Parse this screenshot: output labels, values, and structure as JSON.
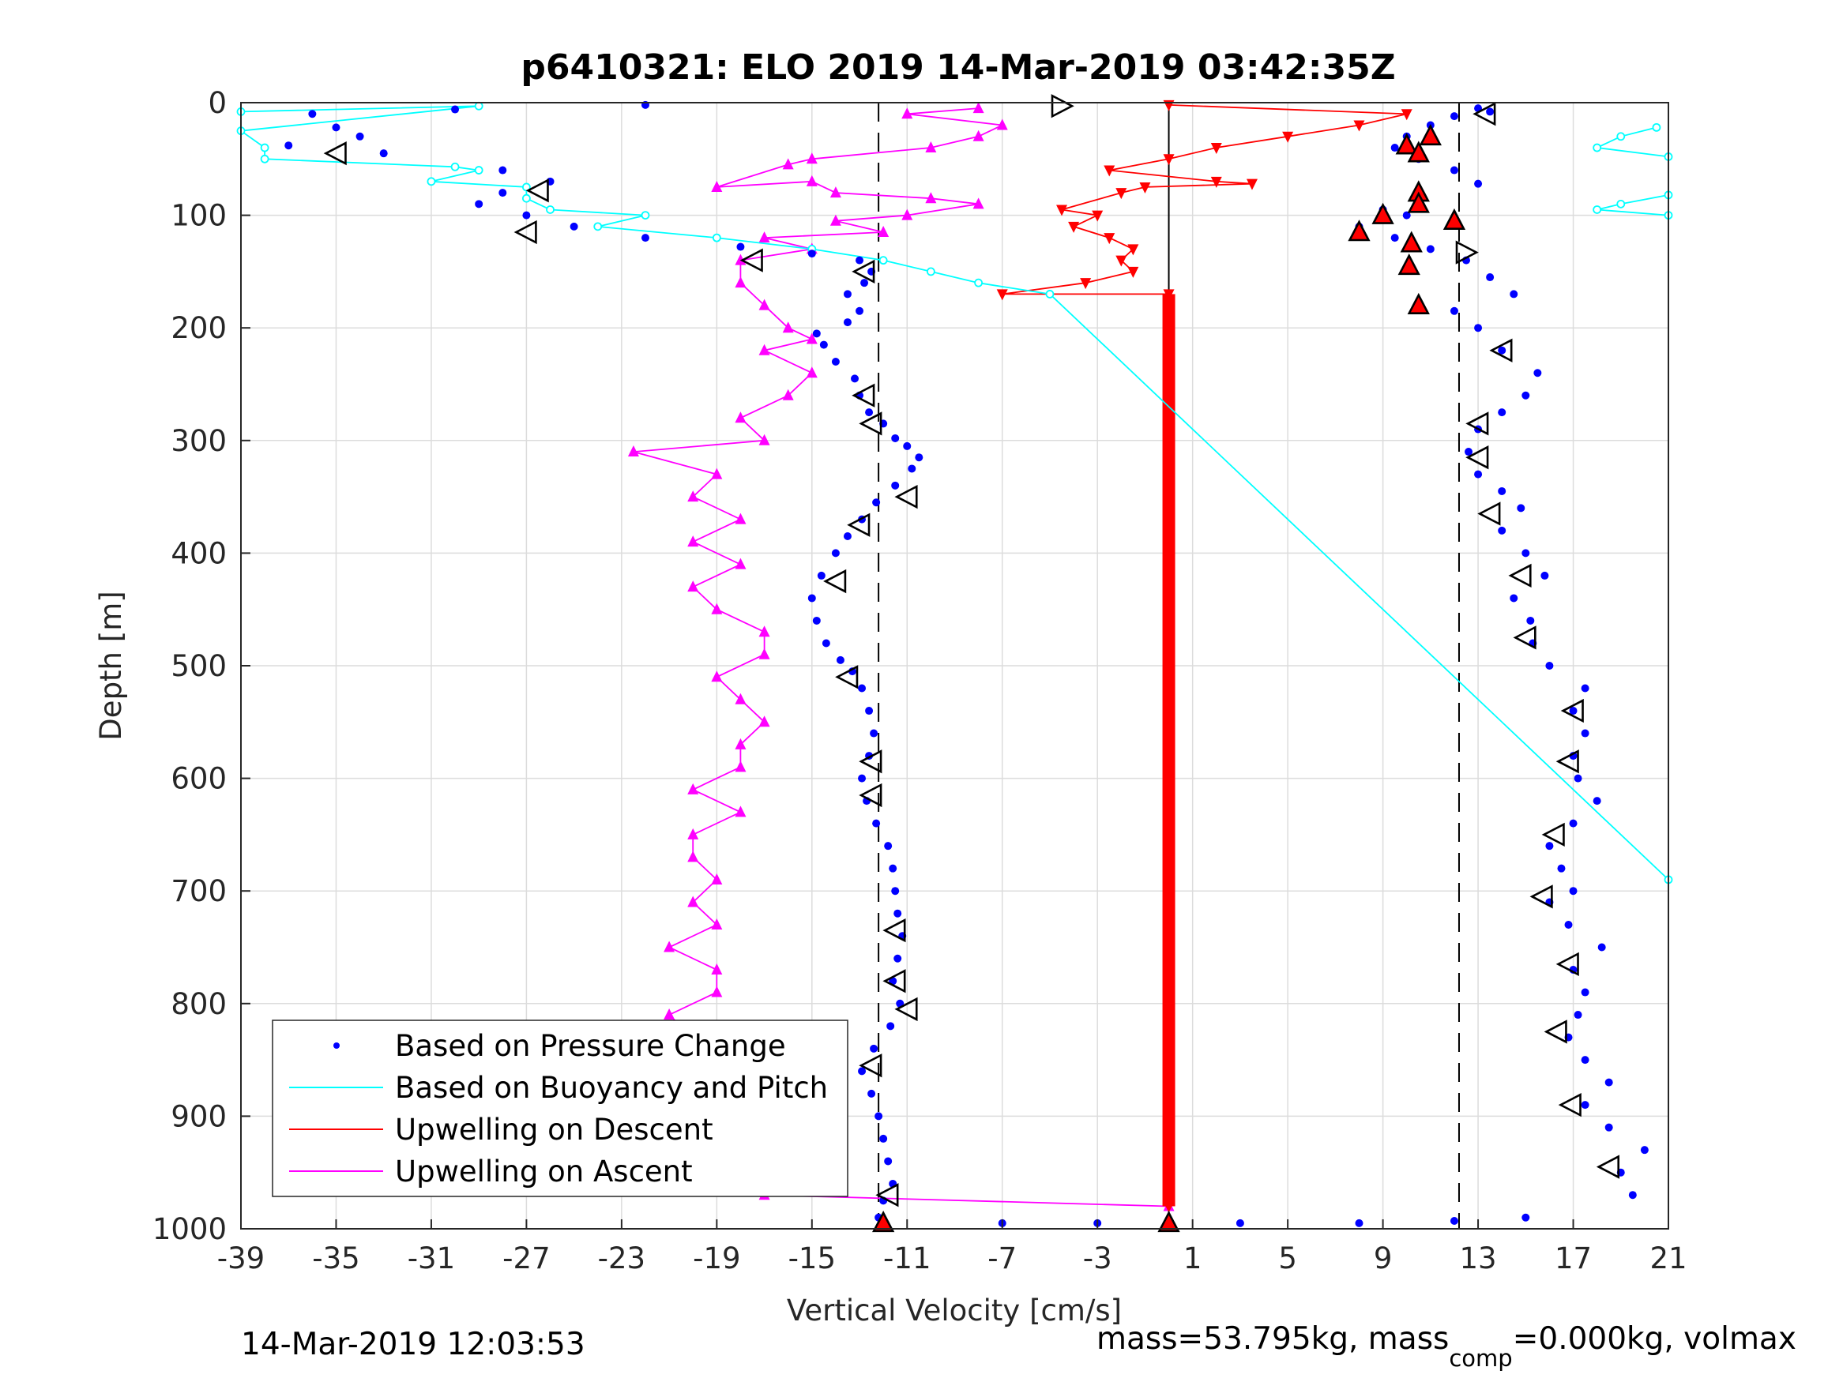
{
  "chart_data": {
    "type": "scatter",
    "title": "p6410321: ELO 2019 14-Mar-2019 03:42:35Z",
    "xlabel": "Vertical Velocity [cm/s]",
    "ylabel": "Depth [m]",
    "xlim": [
      -39,
      21
    ],
    "ylim": [
      0,
      1000
    ],
    "y_reversed": true,
    "grid": true,
    "legend_placement": "bottom-left",
    "xticks": [
      -39,
      -35,
      -31,
      -27,
      -23,
      -19,
      -15,
      -11,
      -7,
      -3,
      1,
      5,
      9,
      13,
      17,
      21
    ],
    "yticks": [
      0,
      100,
      200,
      300,
      400,
      500,
      600,
      700,
      800,
      900,
      1000
    ],
    "reference_lines": {
      "solid_x": 0,
      "dashed_x": [
        -12.2,
        12.2
      ]
    },
    "colors": {
      "pressure": "#0000ff",
      "buoyancy": "#00ffff",
      "upwelling_descent": "#ff0000",
      "upwelling_ascent": "#ff00ff"
    },
    "series": [
      {
        "name": "Based on Pressure Change",
        "descent": [
          [
            -22,
            2
          ],
          [
            -30,
            6
          ],
          [
            -36,
            10
          ],
          [
            -35,
            22
          ],
          [
            -34,
            30
          ],
          [
            -37,
            38
          ],
          [
            -33,
            45
          ],
          [
            -28,
            60
          ],
          [
            -26,
            70
          ],
          [
            -28,
            80
          ],
          [
            -29,
            90
          ],
          [
            -27,
            100
          ],
          [
            -25,
            110
          ],
          [
            -22,
            120
          ],
          [
            -18,
            128
          ],
          [
            -15,
            134
          ],
          [
            -13,
            140
          ],
          [
            -12.5,
            150
          ],
          [
            -12.8,
            160
          ],
          [
            -13.5,
            170
          ],
          [
            -13,
            185
          ],
          [
            -13.5,
            195
          ],
          [
            -14.8,
            205
          ],
          [
            -14.5,
            215
          ],
          [
            -14,
            230
          ],
          [
            -13.2,
            245
          ],
          [
            -13,
            260
          ],
          [
            -12.6,
            275
          ],
          [
            -12,
            285
          ],
          [
            -11.5,
            298
          ],
          [
            -11,
            305
          ],
          [
            -10.5,
            315
          ],
          [
            -10.8,
            325
          ],
          [
            -11.5,
            340
          ],
          [
            -12.3,
            355
          ],
          [
            -12.9,
            370
          ],
          [
            -13.5,
            385
          ],
          [
            -14,
            400
          ],
          [
            -14.6,
            420
          ],
          [
            -15,
            440
          ],
          [
            -14.8,
            460
          ],
          [
            -14.4,
            480
          ],
          [
            -13.8,
            495
          ],
          [
            -13.3,
            505
          ],
          [
            -12.9,
            520
          ],
          [
            -12.6,
            540
          ],
          [
            -12.4,
            560
          ],
          [
            -12.6,
            580
          ],
          [
            -12.9,
            600
          ],
          [
            -12.7,
            620
          ],
          [
            -12.3,
            640
          ],
          [
            -11.8,
            660
          ],
          [
            -11.6,
            680
          ],
          [
            -11.5,
            700
          ],
          [
            -11.4,
            720
          ],
          [
            -11.2,
            740
          ],
          [
            -11.4,
            760
          ],
          [
            -11.6,
            780
          ],
          [
            -11.3,
            800
          ],
          [
            -11.7,
            820
          ],
          [
            -12.4,
            840
          ],
          [
            -12.9,
            860
          ],
          [
            -12.5,
            880
          ],
          [
            -12.2,
            900
          ],
          [
            -12.0,
            920
          ],
          [
            -11.8,
            940
          ],
          [
            -11.6,
            960
          ],
          [
            -12,
            975
          ],
          [
            -12.2,
            990
          ],
          [
            -7,
            995
          ],
          [
            -3,
            995
          ],
          [
            0,
            995
          ],
          [
            3,
            995
          ],
          [
            8,
            995
          ],
          [
            12,
            993
          ],
          [
            15,
            990
          ]
        ],
        "ascent": [
          [
            13,
            5
          ],
          [
            13.5,
            8
          ],
          [
            12,
            12
          ],
          [
            11,
            20
          ],
          [
            10,
            30
          ],
          [
            9.5,
            40
          ],
          [
            10.5,
            50
          ],
          [
            12,
            60
          ],
          [
            13,
            72
          ],
          [
            10.5,
            80
          ],
          [
            9,
            95
          ],
          [
            10,
            100
          ],
          [
            8,
            110
          ],
          [
            9.5,
            120
          ],
          [
            11,
            130
          ],
          [
            12.5,
            140
          ],
          [
            13.5,
            155
          ],
          [
            14.5,
            170
          ],
          [
            12,
            185
          ],
          [
            13,
            200
          ],
          [
            14,
            220
          ],
          [
            15.5,
            240
          ],
          [
            15,
            260
          ],
          [
            14,
            275
          ],
          [
            13,
            290
          ],
          [
            12.6,
            310
          ],
          [
            13,
            330
          ],
          [
            14,
            345
          ],
          [
            14.8,
            360
          ],
          [
            14,
            380
          ],
          [
            15,
            400
          ],
          [
            15.8,
            420
          ],
          [
            14.5,
            440
          ],
          [
            15.2,
            460
          ],
          [
            15.3,
            480
          ],
          [
            16,
            500
          ],
          [
            17.5,
            520
          ],
          [
            17,
            540
          ],
          [
            17.5,
            560
          ],
          [
            17,
            580
          ],
          [
            17.2,
            600
          ],
          [
            18,
            620
          ],
          [
            17,
            640
          ],
          [
            16,
            660
          ],
          [
            16.5,
            680
          ],
          [
            17,
            700
          ],
          [
            16,
            710
          ],
          [
            16.8,
            730
          ],
          [
            18.2,
            750
          ],
          [
            17,
            770
          ],
          [
            17.5,
            790
          ],
          [
            17.2,
            810
          ],
          [
            16.8,
            830
          ],
          [
            17.5,
            850
          ],
          [
            18.5,
            870
          ],
          [
            17.5,
            890
          ],
          [
            18.5,
            910
          ],
          [
            20,
            930
          ],
          [
            19,
            950
          ],
          [
            19.5,
            970
          ]
        ]
      },
      {
        "name": "Based on Buoyancy and Pitch",
        "points": [
          [
            -39,
            8
          ],
          [
            -29,
            3
          ],
          [
            -39,
            25
          ],
          [
            -38,
            40
          ],
          [
            -38,
            50
          ],
          [
            -30,
            57
          ],
          [
            -29,
            60
          ],
          [
            -31,
            70
          ],
          [
            -27,
            75
          ],
          [
            -27,
            85
          ],
          [
            -26,
            95
          ],
          [
            -22,
            100
          ],
          [
            -24,
            110
          ],
          [
            -19,
            120
          ],
          [
            -15,
            130
          ],
          [
            -12,
            140
          ],
          [
            -10,
            150
          ],
          [
            -8,
            160
          ],
          [
            -5,
            170
          ],
          [
            21,
            690
          ]
        ],
        "upper_right": [
          [
            20.5,
            22
          ],
          [
            19,
            30
          ],
          [
            18,
            40
          ],
          [
            21,
            48
          ],
          [
            21,
            82
          ],
          [
            19,
            90
          ],
          [
            18,
            95
          ],
          [
            21,
            100
          ]
        ]
      },
      {
        "name": "Upwelling on Descent",
        "points": [
          [
            0,
            2
          ],
          [
            10,
            10
          ],
          [
            8,
            20
          ],
          [
            5,
            30
          ],
          [
            2,
            40
          ],
          [
            0,
            50
          ],
          [
            -2.5,
            60
          ],
          [
            2,
            70
          ],
          [
            3.5,
            72
          ],
          [
            -1,
            75
          ],
          [
            -2,
            80
          ],
          [
            -4.5,
            95
          ],
          [
            -3,
            100
          ],
          [
            -4,
            110
          ],
          [
            -2.5,
            120
          ],
          [
            -1.5,
            130
          ],
          [
            -2,
            140
          ],
          [
            -1.5,
            150
          ],
          [
            -3.5,
            160
          ],
          [
            -7,
            170
          ],
          [
            0,
            170
          ],
          [
            0,
            980
          ]
        ]
      },
      {
        "name": "Upwelling on Ascent",
        "points": [
          [
            -8,
            5
          ],
          [
            -11,
            10
          ],
          [
            -7,
            20
          ],
          [
            -8,
            30
          ],
          [
            -10,
            40
          ],
          [
            -15,
            50
          ],
          [
            -16,
            55
          ],
          [
            -19,
            75
          ],
          [
            -15,
            70
          ],
          [
            -14,
            80
          ],
          [
            -10,
            85
          ],
          [
            -8,
            90
          ],
          [
            -11,
            100
          ],
          [
            -14,
            105
          ],
          [
            -12,
            115
          ],
          [
            -17,
            120
          ],
          [
            -15,
            130
          ],
          [
            -18,
            140
          ],
          [
            -18,
            160
          ],
          [
            -17,
            180
          ],
          [
            -16,
            200
          ],
          [
            -15,
            210
          ],
          [
            -17,
            220
          ],
          [
            -15,
            240
          ],
          [
            -16,
            260
          ],
          [
            -18,
            280
          ],
          [
            -17,
            300
          ],
          [
            -22.5,
            310
          ],
          [
            -19,
            330
          ],
          [
            -20,
            350
          ],
          [
            -18,
            370
          ],
          [
            -20,
            390
          ],
          [
            -18,
            410
          ],
          [
            -20,
            430
          ],
          [
            -19,
            450
          ],
          [
            -17,
            470
          ],
          [
            -17,
            490
          ],
          [
            -19,
            510
          ],
          [
            -18,
            530
          ],
          [
            -17,
            550
          ],
          [
            -18,
            570
          ],
          [
            -18,
            590
          ],
          [
            -20,
            610
          ],
          [
            -18,
            630
          ],
          [
            -20,
            650
          ],
          [
            -20,
            670
          ],
          [
            -19,
            690
          ],
          [
            -20,
            710
          ],
          [
            -19,
            730
          ],
          [
            -21,
            750
          ],
          [
            -19,
            770
          ],
          [
            -19,
            790
          ],
          [
            -21,
            810
          ],
          [
            -20,
            830
          ],
          [
            -22,
            850
          ],
          [
            -19,
            870
          ],
          [
            -21,
            890
          ],
          [
            -18,
            910
          ],
          [
            -20,
            930
          ],
          [
            -17,
            950
          ],
          [
            -17,
            970
          ],
          [
            0,
            980
          ]
        ]
      }
    ],
    "markers": {
      "open_triangles_left": [
        [
          -35,
          45
        ],
        [
          -26.5,
          78
        ],
        [
          -27,
          115
        ],
        [
          -17.5,
          140
        ],
        [
          -12.8,
          150
        ],
        [
          -12.8,
          260
        ],
        [
          -12.5,
          285
        ],
        [
          -11,
          350
        ],
        [
          -13,
          375
        ],
        [
          -14,
          425
        ],
        [
          -13.5,
          510
        ],
        [
          -12.5,
          585
        ],
        [
          -12.5,
          615
        ],
        [
          -11.5,
          735
        ],
        [
          -11.5,
          780
        ],
        [
          -11,
          805
        ],
        [
          -12.5,
          855
        ],
        [
          -11.8,
          970
        ],
        [
          13.3,
          10
        ],
        [
          14,
          220
        ],
        [
          13,
          285
        ],
        [
          13,
          315
        ],
        [
          13.5,
          365
        ],
        [
          14.8,
          420
        ],
        [
          15,
          475
        ],
        [
          17,
          540
        ],
        [
          16.8,
          585
        ],
        [
          16.2,
          650
        ],
        [
          15.7,
          705
        ],
        [
          16.8,
          765
        ],
        [
          16.3,
          825
        ],
        [
          16.9,
          890
        ],
        [
          18.5,
          945
        ]
      ],
      "open_triangles_right": [
        [
          -4.5,
          3
        ],
        [
          12.5,
          133
        ]
      ],
      "filled_red_triangles": [
        [
          10,
          38
        ],
        [
          11,
          30
        ],
        [
          10.5,
          45
        ],
        [
          10.5,
          80
        ],
        [
          10.5,
          90
        ],
        [
          9,
          100
        ],
        [
          12,
          105
        ],
        [
          8,
          115
        ],
        [
          10.2,
          125
        ],
        [
          10.1,
          145
        ],
        [
          10.5,
          180
        ],
        [
          -12,
          995
        ],
        [
          0,
          995
        ]
      ]
    }
  },
  "legend": {
    "items": [
      "Based on Pressure Change",
      "Based on Buoyancy and Pitch",
      "Upwelling on Descent",
      "Upwelling on Ascent"
    ]
  },
  "footer": {
    "left": "14-Mar-2019 12:03:53",
    "right_main": "mass=53.795kg, mass",
    "right_sub": "comp",
    "right_rest": "=0.000kg, volmax"
  }
}
